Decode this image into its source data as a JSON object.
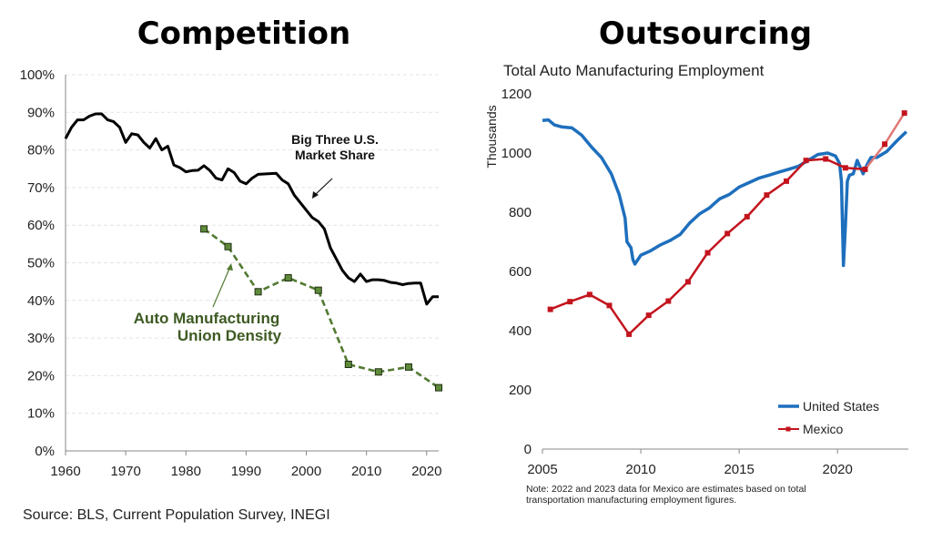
{
  "source_note": "Source: BLS, Current Population Survey, INEGI",
  "chart_data": [
    {
      "type": "line",
      "title": "Competition",
      "xlim": [
        1960,
        2022
      ],
      "ylim": [
        0,
        100
      ],
      "x_ticks": [
        "1960",
        "1970",
        "1980",
        "1990",
        "2000",
        "2010",
        "2020"
      ],
      "y_ticks": [
        "0%",
        "10%",
        "20%",
        "30%",
        "40%",
        "50%",
        "60%",
        "70%",
        "80%",
        "90%",
        "100%"
      ],
      "grid": true,
      "annotations": {
        "market_share_line1": "Big Three U.S.",
        "market_share_line2": "Market Share",
        "union_line1": "Auto Manufacturing",
        "union_line2": "Union Density"
      },
      "series": [
        {
          "key": "market_share",
          "color": "#000000",
          "style": "solid",
          "x": [
            1960,
            1961,
            1962,
            1963,
            1964,
            1965,
            1966,
            1967,
            1968,
            1969,
            1970,
            1971,
            1972,
            1973,
            1974,
            1975,
            1976,
            1977,
            1978,
            1979,
            1980,
            1981,
            1982,
            1983,
            1984,
            1985,
            1986,
            1987,
            1988,
            1989,
            1990,
            1991,
            1992,
            1993,
            1994,
            1995,
            1996,
            1997,
            1998,
            1999,
            2000,
            2001,
            2002,
            2003,
            2004,
            2005,
            2006,
            2007,
            2008,
            2009,
            2010,
            2011,
            2012,
            2013,
            2014,
            2015,
            2016,
            2017,
            2018,
            2019,
            2020,
            2021,
            2022
          ],
          "values": [
            83,
            86,
            88,
            88,
            89,
            89.6,
            89.6,
            88,
            87.5,
            86,
            82,
            84.3,
            84,
            82,
            80.5,
            83,
            80,
            81,
            76,
            75.3,
            74.2,
            74.5,
            74.6,
            75.8,
            74.5,
            72.5,
            72,
            75,
            74,
            71.7,
            71,
            72.5,
            73.5,
            73.6,
            73.7,
            73.8,
            72,
            71,
            68,
            66,
            64,
            62,
            61,
            59,
            54,
            51,
            48,
            46,
            45,
            47,
            45,
            45.5,
            45.5,
            45.3,
            44.8,
            44.6,
            44.2,
            44.5,
            44.6,
            44.6,
            39,
            41,
            41
          ]
        },
        {
          "key": "union_density",
          "color": "#527a32",
          "style": "dashed",
          "x": [
            1983,
            1987,
            1992,
            1997,
            2002,
            2007,
            2012,
            2017,
            2022
          ],
          "values": [
            59,
            54.3,
            42.3,
            46,
            42.7,
            23,
            21,
            22.3,
            16.8
          ]
        }
      ]
    },
    {
      "type": "line",
      "title": "Outsourcing",
      "subtitle": "Total Auto Manufacturing Employment",
      "ylabel": "Thousands",
      "xlim": [
        2005,
        2023.6
      ],
      "ylim": [
        0,
        1200
      ],
      "x_ticks": [
        "2005",
        "2010",
        "2015",
        "2020"
      ],
      "y_ticks": [
        "0",
        "200",
        "400",
        "600",
        "800",
        "1000",
        "1200"
      ],
      "grid": false,
      "legend_position": "bottom-right",
      "note_line1": "Note: 2022 and 2023 data for Mexico are estimates based on total",
      "note_line2": "transportation manufacturing employment figures.",
      "series": [
        {
          "key": "us",
          "name": "United States",
          "color": "#1e6fbd",
          "x": [
            2005,
            2005.3,
            2005.6,
            2006,
            2006.5,
            2007,
            2007.5,
            2008,
            2008.5,
            2008.9,
            2009.2,
            2009.3,
            2009.5,
            2009.6,
            2009.7,
            2010,
            2010.5,
            2011,
            2011.5,
            2012,
            2012.5,
            2013,
            2013.5,
            2014,
            2014.5,
            2015,
            2015.5,
            2016,
            2016.5,
            2017,
            2017.5,
            2018,
            2018.5,
            2019,
            2019.5,
            2019.9,
            2020.1,
            2020.2,
            2020.3,
            2020.4,
            2020.5,
            2020.6,
            2020.8,
            2021,
            2021.3,
            2021.5,
            2021.7,
            2022,
            2022.5,
            2023,
            2023.5
          ],
          "values": [
            1110,
            1112,
            1095,
            1088,
            1085,
            1060,
            1020,
            985,
            930,
            860,
            780,
            700,
            680,
            640,
            625,
            655,
            670,
            690,
            705,
            725,
            765,
            795,
            815,
            845,
            860,
            885,
            900,
            915,
            925,
            935,
            945,
            955,
            975,
            995,
            1000,
            990,
            965,
            905,
            620,
            750,
            905,
            925,
            930,
            975,
            930,
            960,
            985,
            985,
            1005,
            1040,
            1072
          ]
        },
        {
          "key": "mexico",
          "name": "Mexico",
          "color": "#c3141e",
          "estimate_color": "#e07878",
          "x": [
            2005.4,
            2006.4,
            2007.4,
            2008.4,
            2009.4,
            2010.4,
            2011.4,
            2012.4,
            2013.4,
            2014.4,
            2015.4,
            2016.4,
            2017.4,
            2018.4,
            2019.4,
            2020.4,
            2021.4,
            2022.4,
            2023.4
          ],
          "values": [
            472,
            498,
            522,
            485,
            388,
            452,
            500,
            565,
            663,
            728,
            785,
            858,
            905,
            975,
            980,
            950,
            945,
            1030,
            1135
          ],
          "estimate_start_index": 16
        }
      ]
    }
  ]
}
